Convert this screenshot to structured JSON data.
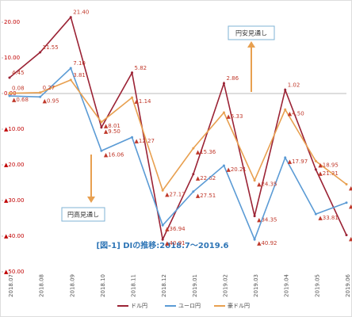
{
  "chart_data": {
    "type": "line",
    "title": "[図-1] DIの推移:2018.7～2019.6",
    "annotations": [
      "円安見通し",
      "円高見通し"
    ],
    "categories": [
      "2018.07",
      "2018.08",
      "2018.09",
      "2018.10",
      "2018.11",
      "2018.12",
      "2019.01",
      "2019.02",
      "2019.03",
      "2019.04",
      "2019.05",
      "2019.06"
    ],
    "ylim": [
      -50,
      20
    ],
    "yticks": [
      {
        "value": 20,
        "label": "20.00"
      },
      {
        "value": 10,
        "label": "10.00"
      },
      {
        "value": 0,
        "label": "0.00"
      },
      {
        "value": -10,
        "label": "▲10.00"
      },
      {
        "value": -20,
        "label": "▲20.00"
      },
      {
        "value": -30,
        "label": "▲30.00"
      },
      {
        "value": -40,
        "label": "▲40.00"
      },
      {
        "value": -50,
        "label": "▲50.00"
      }
    ],
    "series": [
      {
        "name": "ドル円",
        "color": "#9b2335",
        "values": [
          4.45,
          11.55,
          21.4,
          -9.5,
          5.82,
          -40.91,
          -22.62,
          2.86,
          -34.35,
          1.02,
          -21.31,
          -39.7
        ],
        "value_labels": [
          "4.45",
          "11.55",
          "21.40",
          "▲9.50",
          "5.82",
          "▲40.91",
          "▲22.62",
          "2.86",
          "▲34.35",
          "1.02",
          "▲21.31",
          "▲39.70"
        ]
      },
      {
        "name": "ユーロ円",
        "color": "#5b9bd5",
        "values": [
          -0.68,
          -0.95,
          7.1,
          -16.06,
          -12.27,
          -36.94,
          -27.51,
          -20.21,
          -40.92,
          -17.97,
          -33.81,
          -30.61
        ],
        "value_labels": [
          "▲0.68",
          "▲0.95",
          "7.10",
          "▲16.06",
          "▲12.27",
          "▲36.94",
          "▲27.51",
          "▲20.21",
          "▲40.92",
          "▲17.97",
          "▲33.81",
          "▲30.61"
        ]
      },
      {
        "name": "豪ドル円",
        "color": "#e8a050",
        "values": [
          0.08,
          0.27,
          3.81,
          -8.01,
          -1.14,
          -27.17,
          -15.36,
          -5.33,
          -24.35,
          -4.5,
          -18.95,
          -25.45
        ],
        "value_labels": [
          "0.08",
          "0.27",
          "3.81",
          "▲8.01",
          "▲1.14",
          "▲27.17",
          "▲15.36",
          "▲5.33",
          "▲24.35",
          "▲4.50",
          "▲18.95",
          "▲25.45"
        ]
      }
    ]
  }
}
